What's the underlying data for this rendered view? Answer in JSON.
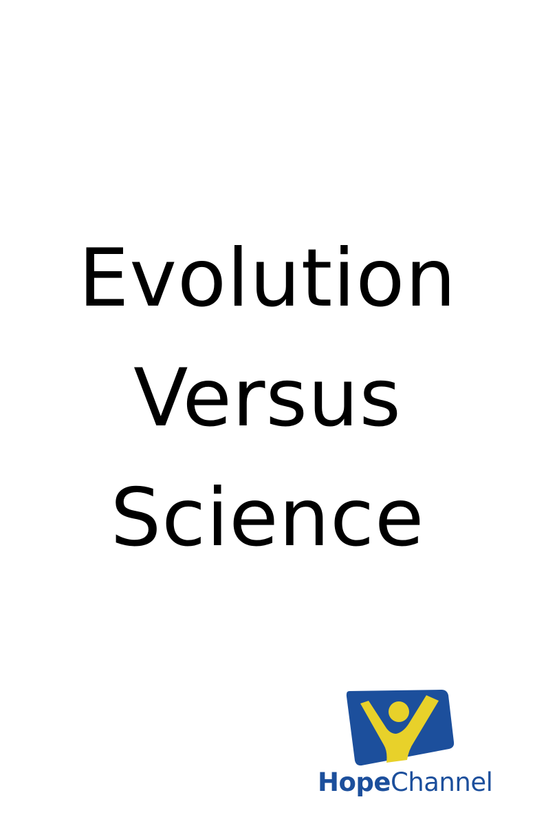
{
  "title": {
    "lines": [
      "Evolution",
      "Versus",
      "Science"
    ]
  },
  "logo": {
    "brand_part1": "Hope",
    "brand_part2": "Channel",
    "icon": "hope-channel-figure-icon",
    "colors": {
      "blue": "#1c4f9c",
      "yellow": "#e8d12a",
      "text": "#1c4f9c"
    }
  }
}
